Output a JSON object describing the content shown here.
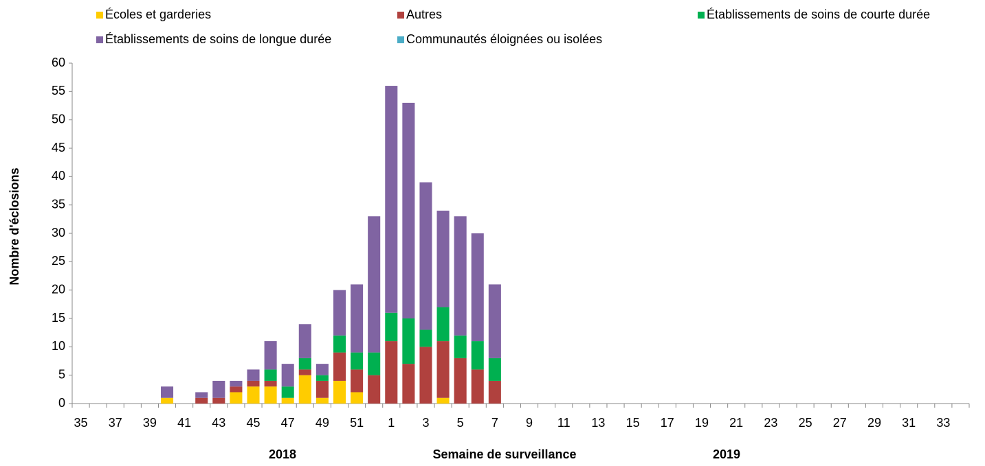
{
  "chart_data": {
    "type": "stacked_bar",
    "y_label": "Nombre d'éclosions",
    "x_label": "Semaine de surveillance",
    "year_labels": [
      "2018",
      "2019"
    ],
    "categories": [
      "35",
      null,
      "37",
      null,
      "39",
      null,
      "41",
      null,
      "43",
      null,
      "45",
      null,
      "47",
      null,
      "49",
      null,
      "51",
      null,
      "1",
      null,
      "3",
      null,
      "5",
      null,
      "7",
      null,
      "9",
      null,
      "11",
      null,
      "13",
      null,
      "15",
      null,
      "17",
      null,
      "19",
      null,
      "21",
      null,
      "23",
      null,
      "25",
      null,
      "27",
      null,
      "29",
      null,
      "31",
      null,
      "33",
      null
    ],
    "series": [
      {
        "name": "Écoles et garderies",
        "color": "#ffcc00",
        "values": [
          0,
          0,
          0,
          0,
          0,
          1,
          0,
          0,
          0,
          2,
          3,
          3,
          1,
          5,
          1,
          4,
          2,
          0,
          0,
          0,
          0,
          1,
          0,
          0,
          0,
          0,
          0,
          0,
          0,
          0,
          0,
          0,
          0,
          0,
          0,
          0,
          0,
          0,
          0,
          0,
          0,
          0,
          0,
          0,
          0,
          0,
          0,
          0,
          0,
          0,
          0,
          0
        ]
      },
      {
        "name": "Autres",
        "color": "#b0413e",
        "values": [
          0,
          0,
          0,
          0,
          0,
          0,
          0,
          1,
          1,
          1,
          1,
          1,
          0,
          1,
          3,
          5,
          4,
          5,
          11,
          7,
          10,
          10,
          8,
          6,
          4,
          0,
          0,
          0,
          0,
          0,
          0,
          0,
          0,
          0,
          0,
          0,
          0,
          0,
          0,
          0,
          0,
          0,
          0,
          0,
          0,
          0,
          0,
          0,
          0,
          0,
          0,
          0
        ]
      },
      {
        "name": "Établissements de soins de courte durée",
        "color": "#00b050",
        "values": [
          0,
          0,
          0,
          0,
          0,
          0,
          0,
          0,
          0,
          0,
          0,
          2,
          2,
          2,
          1,
          3,
          3,
          4,
          5,
          8,
          3,
          6,
          4,
          5,
          4,
          0,
          0,
          0,
          0,
          0,
          0,
          0,
          0,
          0,
          0,
          0,
          0,
          0,
          0,
          0,
          0,
          0,
          0,
          0,
          0,
          0,
          0,
          0,
          0,
          0,
          0,
          0
        ]
      },
      {
        "name": "Établissements de soins de longue durée",
        "color": "#8064a2",
        "values": [
          0,
          0,
          0,
          0,
          0,
          2,
          0,
          1,
          3,
          1,
          2,
          5,
          4,
          6,
          2,
          8,
          12,
          24,
          40,
          38,
          26,
          17,
          21,
          19,
          13,
          0,
          0,
          0,
          0,
          0,
          0,
          0,
          0,
          0,
          0,
          0,
          0,
          0,
          0,
          0,
          0,
          0,
          0,
          0,
          0,
          0,
          0,
          0,
          0,
          0,
          0,
          0
        ]
      },
      {
        "name": "Communautés éloignées ou isolées",
        "color": "#4bacc6",
        "values": [
          0,
          0,
          0,
          0,
          0,
          0,
          0,
          0,
          0,
          0,
          0,
          0,
          0,
          0,
          0,
          0,
          0,
          0,
          0,
          0,
          0,
          0,
          0,
          0,
          0,
          0,
          0,
          0,
          0,
          0,
          0,
          0,
          0,
          0,
          0,
          0,
          0,
          0,
          0,
          0,
          0,
          0,
          0,
          0,
          0,
          0,
          0,
          0,
          0,
          0,
          0,
          0
        ]
      }
    ],
    "ylim": [
      0,
      60
    ],
    "yticks": [
      0,
      5,
      10,
      15,
      20,
      25,
      30,
      35,
      40,
      45,
      50,
      55,
      60
    ],
    "grid": false
  }
}
